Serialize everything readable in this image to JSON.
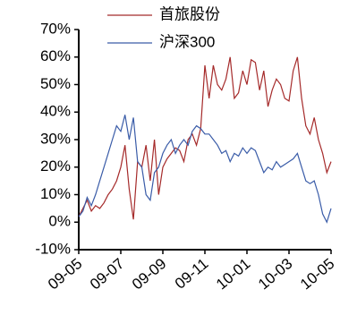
{
  "chart_data": {
    "type": "line",
    "categories": [
      "09-05",
      null,
      null,
      null,
      null,
      null,
      null,
      null,
      null,
      null,
      "09-07",
      null,
      null,
      null,
      null,
      null,
      null,
      null,
      null,
      null,
      "09-09",
      null,
      null,
      null,
      null,
      null,
      null,
      null,
      null,
      null,
      "09-11",
      null,
      null,
      null,
      null,
      null,
      null,
      null,
      null,
      null,
      "10-01",
      null,
      null,
      null,
      null,
      null,
      null,
      null,
      null,
      null,
      "10-03",
      null,
      null,
      null,
      null,
      null,
      null,
      null,
      null,
      null,
      "10-05"
    ],
    "series": [
      {
        "name": "首旅股份",
        "color": "#a52a2a",
        "values": [
          2,
          5,
          8,
          4,
          6,
          5,
          7,
          10,
          12,
          15,
          20,
          28,
          12,
          1,
          22,
          20,
          28,
          15,
          30,
          10,
          20,
          23,
          25,
          27,
          26,
          22,
          30,
          32,
          28,
          34,
          57,
          45,
          57,
          50,
          48,
          52,
          60,
          45,
          47,
          55,
          50,
          59,
          58,
          48,
          55,
          42,
          48,
          52,
          50,
          45,
          44,
          55,
          60,
          45,
          35,
          32,
          38,
          30,
          25,
          18,
          22
        ]
      },
      {
        "name": "沪深300",
        "color": "#3a5ca8",
        "values": [
          2,
          4,
          9,
          6,
          10,
          15,
          20,
          25,
          30,
          35,
          33,
          39,
          30,
          38,
          22,
          20,
          10,
          8,
          18,
          20,
          25,
          28,
          30,
          25,
          28,
          30,
          28,
          33,
          35,
          34,
          32,
          32,
          30,
          28,
          25,
          26,
          22,
          25,
          24,
          27,
          25,
          27,
          26,
          22,
          18,
          20,
          19,
          22,
          20,
          21,
          22,
          23,
          25,
          20,
          15,
          14,
          15,
          10,
          3,
          0,
          5
        ]
      }
    ],
    "ylim": [
      -10,
      70
    ],
    "yticks": [
      {
        "value": -10,
        "label": "-10%"
      },
      {
        "value": 0,
        "label": "0%"
      },
      {
        "value": 10,
        "label": "10%"
      },
      {
        "value": 20,
        "label": "20%"
      },
      {
        "value": 30,
        "label": "30%"
      },
      {
        "value": 40,
        "label": "40%"
      },
      {
        "value": 50,
        "label": "50%"
      },
      {
        "value": 60,
        "label": "60%"
      },
      {
        "value": 70,
        "label": "70%"
      }
    ],
    "legend": "upper left"
  }
}
